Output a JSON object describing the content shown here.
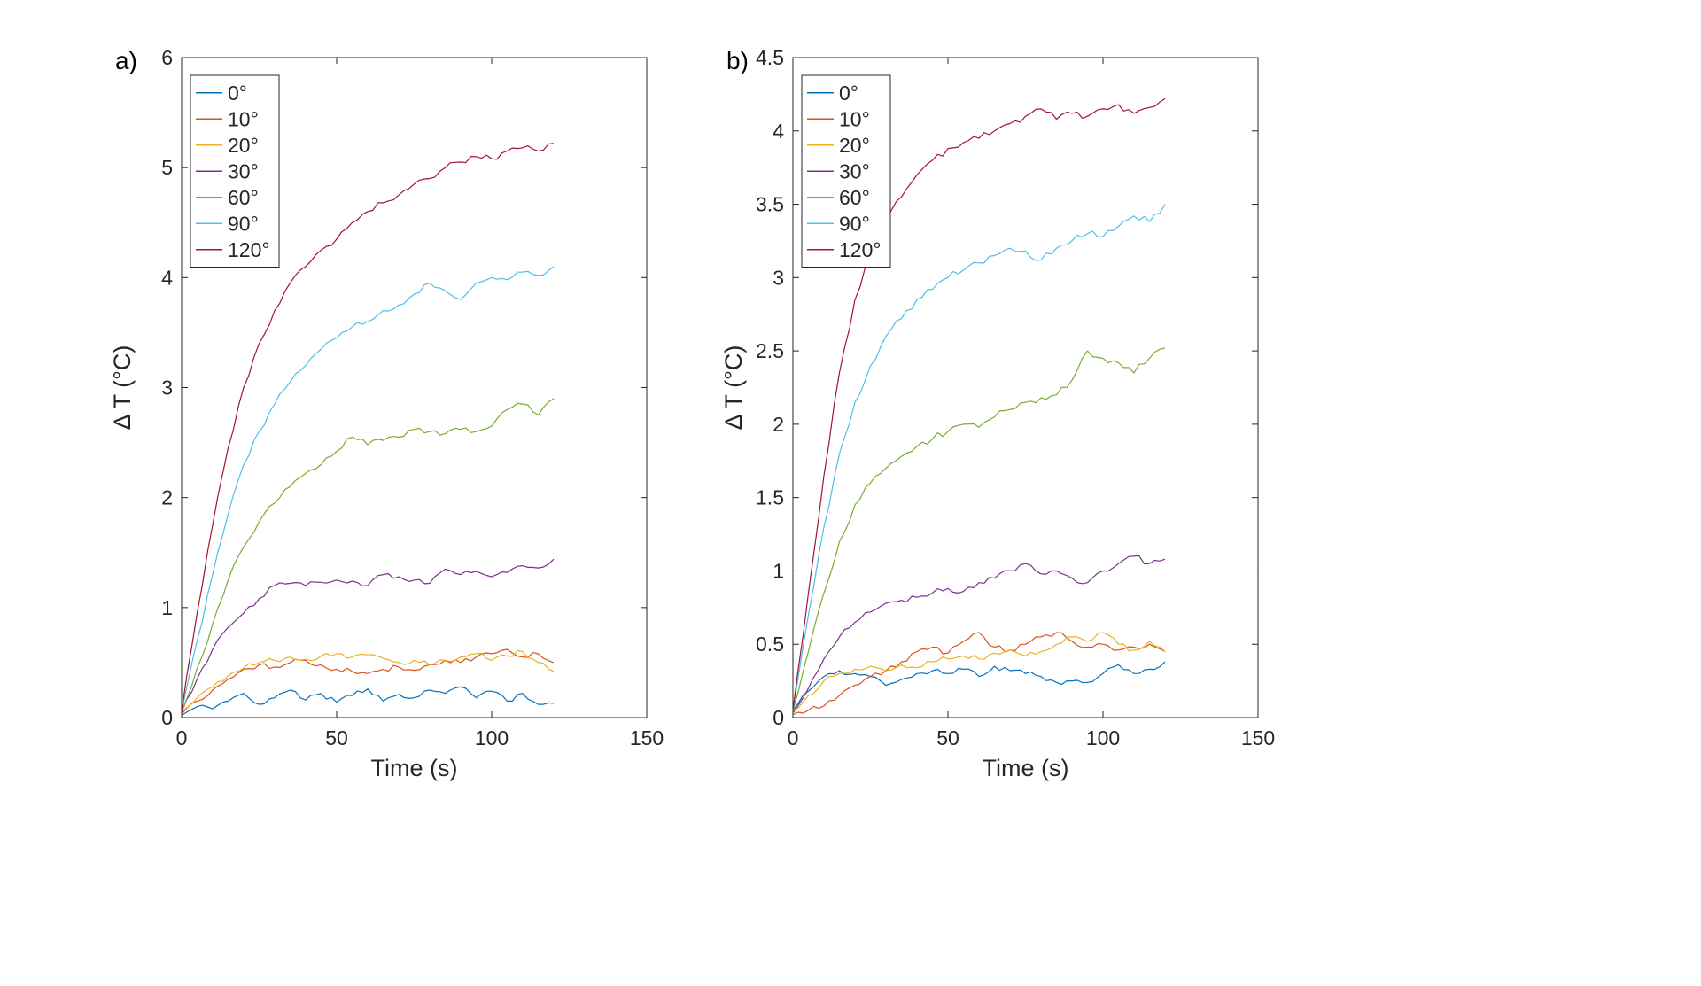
{
  "figure": {
    "background": "#ffffff",
    "axis_color": "#262626"
  },
  "chart_data": [
    {
      "id": "a",
      "type": "line",
      "panel_label": "a)",
      "xlabel": "Time (s)",
      "ylabel": "Δ T (°C)",
      "xlim": [
        0,
        150
      ],
      "ylim": [
        0,
        6
      ],
      "xticks": [
        0,
        50,
        100,
        150
      ],
      "xtick_labels": [
        "0",
        "50",
        "100",
        "150"
      ],
      "yticks": [
        0,
        1,
        2,
        3,
        4,
        5,
        6
      ],
      "ytick_labels": [
        "0",
        "1",
        "2",
        "3",
        "4",
        "5",
        "6"
      ],
      "grid": false,
      "legend_position": "northwest",
      "x": [
        0,
        5,
        10,
        15,
        20,
        25,
        30,
        35,
        40,
        45,
        50,
        55,
        60,
        65,
        70,
        75,
        80,
        85,
        90,
        95,
        100,
        105,
        110,
        115,
        120
      ],
      "series": [
        {
          "label": "0°",
          "color": "#0072BD",
          "noise": 0.025,
          "y": [
            0.02,
            0.1,
            0.08,
            0.15,
            0.22,
            0.12,
            0.18,
            0.25,
            0.16,
            0.22,
            0.14,
            0.2,
            0.26,
            0.15,
            0.21,
            0.18,
            0.25,
            0.22,
            0.28,
            0.18,
            0.24,
            0.15,
            0.22,
            0.12,
            0.13
          ]
        },
        {
          "label": "10°",
          "color": "#D95319",
          "noise": 0.025,
          "y": [
            0.03,
            0.15,
            0.25,
            0.35,
            0.44,
            0.48,
            0.46,
            0.5,
            0.52,
            0.48,
            0.44,
            0.42,
            0.4,
            0.44,
            0.46,
            0.43,
            0.48,
            0.52,
            0.5,
            0.55,
            0.58,
            0.62,
            0.55,
            0.58,
            0.5
          ]
        },
        {
          "label": "20°",
          "color": "#EDB120",
          "noise": 0.025,
          "y": [
            0.05,
            0.18,
            0.28,
            0.38,
            0.45,
            0.5,
            0.52,
            0.55,
            0.53,
            0.56,
            0.58,
            0.55,
            0.57,
            0.54,
            0.5,
            0.52,
            0.48,
            0.52,
            0.55,
            0.58,
            0.52,
            0.56,
            0.6,
            0.5,
            0.42
          ]
        },
        {
          "label": "30°",
          "color": "#7E2F8E",
          "noise": 0.025,
          "y": [
            0.05,
            0.35,
            0.62,
            0.82,
            0.95,
            1.08,
            1.2,
            1.22,
            1.2,
            1.23,
            1.25,
            1.24,
            1.2,
            1.3,
            1.28,
            1.25,
            1.22,
            1.35,
            1.3,
            1.33,
            1.28,
            1.32,
            1.38,
            1.36,
            1.44
          ]
        },
        {
          "label": "60°",
          "color": "#77AC30",
          "noise": 0.03,
          "y": [
            0.05,
            0.45,
            0.85,
            1.25,
            1.55,
            1.78,
            1.95,
            2.1,
            2.22,
            2.3,
            2.42,
            2.55,
            2.48,
            2.52,
            2.55,
            2.62,
            2.6,
            2.58,
            2.62,
            2.6,
            2.65,
            2.8,
            2.85,
            2.75,
            2.9
          ]
        },
        {
          "label": "90°",
          "color": "#4DBEEE",
          "noise": 0.03,
          "y": [
            0.05,
            0.7,
            1.3,
            1.85,
            2.3,
            2.6,
            2.85,
            3.05,
            3.2,
            3.35,
            3.45,
            3.55,
            3.6,
            3.7,
            3.75,
            3.85,
            3.95,
            3.88,
            3.8,
            3.95,
            4.0,
            3.98,
            4.05,
            4.02,
            4.1
          ]
        },
        {
          "label": "120°",
          "color": "#A2142F",
          "noise": 0.03,
          "y": [
            0.05,
            0.95,
            1.75,
            2.45,
            3.0,
            3.4,
            3.7,
            3.95,
            4.1,
            4.25,
            4.35,
            4.5,
            4.6,
            4.68,
            4.75,
            4.85,
            4.9,
            5.0,
            5.05,
            5.1,
            5.08,
            5.15,
            5.18,
            5.15,
            5.22
          ]
        }
      ]
    },
    {
      "id": "b",
      "type": "line",
      "panel_label": "b)",
      "xlabel": "Time (s)",
      "ylabel": "Δ T (°C)",
      "xlim": [
        0,
        150
      ],
      "ylim": [
        0,
        4.5
      ],
      "xticks": [
        0,
        50,
        100,
        150
      ],
      "xtick_labels": [
        "0",
        "50",
        "100",
        "150"
      ],
      "yticks": [
        0,
        0.5,
        1,
        1.5,
        2,
        2.5,
        3,
        3.5,
        4,
        4.5
      ],
      "ytick_labels": [
        "0",
        "0.5",
        "1",
        "1.5",
        "2",
        "2.5",
        "3",
        "3.5",
        "4",
        "4.5"
      ],
      "grid": false,
      "legend_position": "northwest",
      "x": [
        0,
        5,
        10,
        15,
        20,
        25,
        30,
        35,
        40,
        45,
        50,
        55,
        60,
        65,
        70,
        75,
        80,
        85,
        90,
        95,
        100,
        105,
        110,
        115,
        120
      ],
      "series": [
        {
          "label": "0°",
          "color": "#0072BD",
          "noise": 0.02,
          "y": [
            0.05,
            0.18,
            0.28,
            0.32,
            0.3,
            0.28,
            0.22,
            0.26,
            0.3,
            0.32,
            0.3,
            0.33,
            0.28,
            0.35,
            0.32,
            0.3,
            0.28,
            0.24,
            0.25,
            0.24,
            0.3,
            0.36,
            0.3,
            0.33,
            0.38
          ]
        },
        {
          "label": "10°",
          "color": "#D95319",
          "noise": 0.02,
          "y": [
            0.02,
            0.05,
            0.08,
            0.15,
            0.22,
            0.28,
            0.32,
            0.38,
            0.45,
            0.48,
            0.44,
            0.52,
            0.58,
            0.48,
            0.46,
            0.5,
            0.55,
            0.58,
            0.52,
            0.48,
            0.5,
            0.46,
            0.48,
            0.5,
            0.45
          ]
        },
        {
          "label": "20°",
          "color": "#EDB120",
          "noise": 0.02,
          "y": [
            0.05,
            0.15,
            0.25,
            0.3,
            0.33,
            0.35,
            0.32,
            0.36,
            0.34,
            0.38,
            0.4,
            0.42,
            0.4,
            0.44,
            0.46,
            0.42,
            0.45,
            0.5,
            0.55,
            0.52,
            0.58,
            0.5,
            0.46,
            0.52,
            0.45
          ]
        },
        {
          "label": "30°",
          "color": "#7E2F8E",
          "noise": 0.02,
          "y": [
            0.03,
            0.2,
            0.4,
            0.55,
            0.65,
            0.72,
            0.78,
            0.8,
            0.82,
            0.85,
            0.88,
            0.86,
            0.92,
            0.95,
            1.0,
            1.05,
            0.98,
            1.0,
            0.95,
            0.92,
            1.0,
            1.05,
            1.1,
            1.05,
            1.08
          ]
        },
        {
          "label": "60°",
          "color": "#77AC30",
          "noise": 0.025,
          "y": [
            0.05,
            0.45,
            0.85,
            1.2,
            1.45,
            1.6,
            1.7,
            1.78,
            1.85,
            1.9,
            1.95,
            2.0,
            1.98,
            2.05,
            2.1,
            2.15,
            2.18,
            2.2,
            2.3,
            2.5,
            2.45,
            2.42,
            2.35,
            2.45,
            2.52
          ]
        },
        {
          "label": "90°",
          "color": "#4DBEEE",
          "noise": 0.025,
          "y": [
            0.05,
            0.7,
            1.3,
            1.8,
            2.15,
            2.4,
            2.6,
            2.72,
            2.85,
            2.92,
            3.0,
            3.05,
            3.1,
            3.15,
            3.2,
            3.18,
            3.12,
            3.2,
            3.25,
            3.3,
            3.28,
            3.35,
            3.42,
            3.38,
            3.5
          ]
        },
        {
          "label": "120°",
          "color": "#A2142F",
          "noise": 0.025,
          "y": [
            0.05,
            0.85,
            1.65,
            2.35,
            2.85,
            3.15,
            3.4,
            3.55,
            3.7,
            3.8,
            3.88,
            3.92,
            3.95,
            4.0,
            4.05,
            4.1,
            4.15,
            4.08,
            4.12,
            4.1,
            4.15,
            4.18,
            4.12,
            4.16,
            4.22
          ]
        }
      ]
    }
  ]
}
